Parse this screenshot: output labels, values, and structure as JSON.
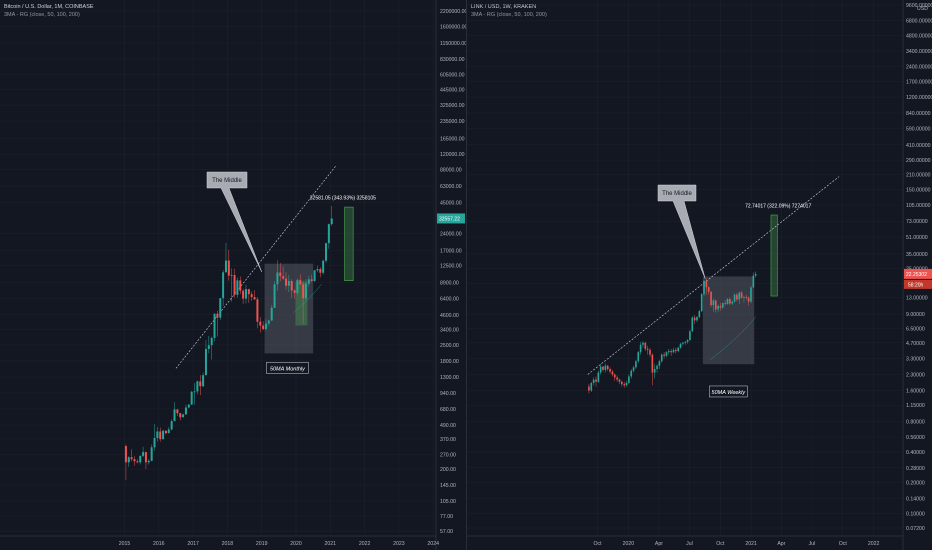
{
  "colors": {
    "background": "#131722",
    "up": "#26a69a",
    "down": "#ef5350",
    "grid": "#1e222d",
    "text": "#b2b5be",
    "range_box": "rgba(120,123,134,0.35)",
    "measure_box": "rgba(76,175,80,0.3)",
    "measure_border": "#4caf50",
    "trendline": "#d1d4dc",
    "callout": "#a9abb3"
  },
  "chart_data": [
    {
      "type": "candlestick",
      "title": "Bitcoin / U.S. Dollar, 1M, COINBASE",
      "subtitle": "3MA - RG (close, 50, 100, 200)",
      "y_scale": "log",
      "x_ticks": [
        "2015",
        "2016",
        "2017",
        "2018",
        "2019",
        "2020",
        "2021",
        "2022",
        "2023",
        "2024"
      ],
      "y_ticks": [
        "2200000.00",
        "1600000.00",
        "1150000.00",
        "830000.00",
        "605000.00",
        "445000.00",
        "325000.00",
        "235000.00",
        "165000.00",
        "120000.00",
        "88000.00",
        "63000.00",
        "45000.00",
        "32557.22",
        "24000.00",
        "17000.00",
        "12500.00",
        "8900.00",
        "6400.00",
        "4600.00",
        "3400.00",
        "2500.00",
        "1800.00",
        "1300.00",
        "940.00",
        "680.00",
        "490.00",
        "370.00",
        "270.00",
        "200.00",
        "145.00",
        "105.00",
        "77.00",
        "57.00"
      ],
      "last_price": "32557.22",
      "annotations": {
        "callout": "The Middle",
        "range_label": "50MA Monthly",
        "measure": "32581.05 (343.93%) 3258105"
      },
      "x": [
        "2015-01",
        "2015-02",
        "2015-03",
        "2015-04",
        "2015-05",
        "2015-06",
        "2015-07",
        "2015-08",
        "2015-09",
        "2015-10",
        "2015-11",
        "2015-12",
        "2016-01",
        "2016-02",
        "2016-03",
        "2016-04",
        "2016-05",
        "2016-06",
        "2016-07",
        "2016-08",
        "2016-09",
        "2016-10",
        "2016-11",
        "2016-12",
        "2017-01",
        "2017-02",
        "2017-03",
        "2017-04",
        "2017-05",
        "2017-06",
        "2017-07",
        "2017-08",
        "2017-09",
        "2017-10",
        "2017-11",
        "2017-12",
        "2018-01",
        "2018-02",
        "2018-03",
        "2018-04",
        "2018-05",
        "2018-06",
        "2018-07",
        "2018-08",
        "2018-09",
        "2018-10",
        "2018-11",
        "2018-12",
        "2019-01",
        "2019-02",
        "2019-03",
        "2019-04",
        "2019-05",
        "2019-06",
        "2019-07",
        "2019-08",
        "2019-09",
        "2019-10",
        "2019-11",
        "2019-12",
        "2020-01",
        "2020-02",
        "2020-03",
        "2020-04",
        "2020-05",
        "2020-06",
        "2020-07",
        "2020-08",
        "2020-09",
        "2020-10",
        "2020-11",
        "2020-12",
        "2021-01"
      ],
      "ohlc": [
        [
          320,
          330,
          160,
          230
        ],
        [
          230,
          260,
          210,
          255
        ],
        [
          255,
          300,
          235,
          245
        ],
        [
          245,
          260,
          215,
          235
        ],
        [
          235,
          245,
          225,
          230
        ],
        [
          230,
          265,
          220,
          262
        ],
        [
          262,
          315,
          255,
          283
        ],
        [
          283,
          285,
          200,
          230
        ],
        [
          230,
          245,
          220,
          237
        ],
        [
          237,
          330,
          235,
          312
        ],
        [
          312,
          500,
          290,
          377
        ],
        [
          377,
          470,
          350,
          430
        ],
        [
          430,
          465,
          350,
          368
        ],
        [
          368,
          445,
          365,
          437
        ],
        [
          437,
          440,
          405,
          416
        ],
        [
          416,
          470,
          415,
          448
        ],
        [
          448,
          550,
          440,
          531
        ],
        [
          531,
          780,
          530,
          673
        ],
        [
          673,
          680,
          590,
          624
        ],
        [
          624,
          625,
          540,
          575
        ],
        [
          575,
          620,
          570,
          608
        ],
        [
          608,
          740,
          605,
          700
        ],
        [
          700,
          750,
          690,
          742
        ],
        [
          742,
          980,
          740,
          964
        ],
        [
          964,
          1150,
          740,
          970
        ],
        [
          970,
          1210,
          915,
          1190
        ],
        [
          1190,
          1350,
          900,
          1080
        ],
        [
          1080,
          1420,
          1060,
          1350
        ],
        [
          1350,
          2750,
          1350,
          2300
        ],
        [
          2300,
          3000,
          2100,
          2480
        ],
        [
          2480,
          2950,
          1850,
          2875
        ],
        [
          2875,
          4750,
          2680,
          4700
        ],
        [
          4700,
          5000,
          2950,
          4340
        ],
        [
          4340,
          6450,
          4150,
          6450
        ],
        [
          6450,
          11400,
          5500,
          10900
        ],
        [
          10900,
          19800,
          10900,
          13850
        ],
        [
          13850,
          17200,
          9200,
          10200
        ],
        [
          10200,
          11800,
          6000,
          10300
        ],
        [
          10300,
          11700,
          6500,
          6900
        ],
        [
          6900,
          9800,
          6500,
          9250
        ],
        [
          9250,
          10000,
          7000,
          7500
        ],
        [
          7500,
          7800,
          5750,
          6400
        ],
        [
          6400,
          8500,
          5800,
          7750
        ],
        [
          7750,
          7800,
          5850,
          7000
        ],
        [
          7000,
          7400,
          6100,
          6600
        ],
        [
          6600,
          7600,
          6200,
          6300
        ],
        [
          6300,
          6600,
          3500,
          4000
        ],
        [
          4000,
          4400,
          3200,
          3700
        ],
        [
          3700,
          4050,
          3350,
          3450
        ],
        [
          3450,
          4200,
          3350,
          3850
        ],
        [
          3850,
          4150,
          3650,
          4100
        ],
        [
          4100,
          5600,
          4050,
          5300
        ],
        [
          5300,
          9100,
          5300,
          8550
        ],
        [
          8550,
          13900,
          7450,
          10850
        ],
        [
          10850,
          13150,
          9100,
          10100
        ],
        [
          10100,
          12300,
          9350,
          9600
        ],
        [
          9600,
          10950,
          7700,
          8300
        ],
        [
          8300,
          10400,
          7300,
          9150
        ],
        [
          9150,
          9500,
          6500,
          7550
        ],
        [
          7550,
          7750,
          6400,
          7200
        ],
        [
          7200,
          9600,
          6900,
          9350
        ],
        [
          9350,
          10500,
          8450,
          8550
        ],
        [
          8550,
          9200,
          3850,
          6450
        ],
        [
          6450,
          9500,
          6150,
          8650
        ],
        [
          8650,
          10100,
          8150,
          9450
        ],
        [
          9450,
          10400,
          8900,
          9150
        ],
        [
          9150,
          11450,
          8950,
          11350
        ],
        [
          11350,
          12500,
          10950,
          11650
        ],
        [
          11650,
          12100,
          9850,
          10800
        ],
        [
          10800,
          14100,
          10400,
          13800
        ],
        [
          13800,
          19900,
          13200,
          19700
        ],
        [
          19700,
          29300,
          17600,
          29000
        ],
        [
          29000,
          41950,
          28100,
          32557
        ]
      ]
    },
    {
      "type": "candlestick",
      "title": "LINK / USD, 1W, KRAKEN",
      "subtitle": "3MA - RG (close, 50, 100, 200)",
      "y_scale": "log",
      "y_unit": "USD",
      "x_ticks": [
        "Oct",
        "2020",
        "Apr",
        "Jul",
        "Oct",
        "2021",
        "Apr",
        "Jul",
        "Oct",
        "2022"
      ],
      "y_ticks": [
        "9600.00000",
        "6800.00000",
        "4800.00000",
        "3400.00000",
        "2400.00000",
        "1700.00000",
        "1200.00000",
        "840.00000",
        "590.00000",
        "410.00000",
        "290.00000",
        "210.00000",
        "150.00000",
        "105.00000",
        "73.00000",
        "51.00000",
        "35.00000",
        "25.00000",
        "18.00000",
        "13.00000",
        "9.00000",
        "6.50000",
        "4.70000",
        "3.30000",
        "2.30000",
        "1.60000",
        "1.15000",
        "0.80000",
        "0.56000",
        "0.40000",
        "0.28000",
        "0.20000",
        "0.14000",
        "0.10000",
        "0.07200"
      ],
      "last_price": "22.25302",
      "last_price_sub": "58:20h",
      "annotations": {
        "callout": "The Middle",
        "range_label": "50MA Weekly",
        "measure": "72.74017 (322.09%) 7274017"
      },
      "x": [
        "2019-09-02",
        "2019-09-09",
        "2019-09-16",
        "2019-09-23",
        "2019-09-30",
        "2019-10-07",
        "2019-10-14",
        "2019-10-21",
        "2019-10-28",
        "2019-11-04",
        "2019-11-11",
        "2019-11-18",
        "2019-11-25",
        "2019-12-02",
        "2019-12-09",
        "2019-12-16",
        "2019-12-23",
        "2019-12-30",
        "2020-01-06",
        "2020-01-13",
        "2020-01-20",
        "2020-01-27",
        "2020-02-03",
        "2020-02-10",
        "2020-02-17",
        "2020-02-24",
        "2020-03-02",
        "2020-03-09",
        "2020-03-16",
        "2020-03-23",
        "2020-03-30",
        "2020-04-06",
        "2020-04-13",
        "2020-04-20",
        "2020-04-27",
        "2020-05-04",
        "2020-05-11",
        "2020-05-18",
        "2020-05-25",
        "2020-06-01",
        "2020-06-08",
        "2020-06-15",
        "2020-06-22",
        "2020-06-29",
        "2020-07-06",
        "2020-07-13",
        "2020-07-20",
        "2020-07-27",
        "2020-08-03",
        "2020-08-10",
        "2020-08-17",
        "2020-08-24",
        "2020-08-31",
        "2020-09-07",
        "2020-09-14",
        "2020-09-21",
        "2020-09-28",
        "2020-10-05",
        "2020-10-12",
        "2020-10-19",
        "2020-10-26",
        "2020-11-02",
        "2020-11-09",
        "2020-11-16",
        "2020-11-23",
        "2020-11-30",
        "2020-12-07",
        "2020-12-14",
        "2020-12-21",
        "2020-12-28",
        "2021-01-04",
        "2021-01-11"
      ],
      "ohlc": [
        [
          1.75,
          1.85,
          1.5,
          1.6
        ],
        [
          1.6,
          1.95,
          1.55,
          1.9
        ],
        [
          1.9,
          2.15,
          1.8,
          2.05
        ],
        [
          2.05,
          2.2,
          1.75,
          1.95
        ],
        [
          1.95,
          2.5,
          1.9,
          2.4
        ],
        [
          2.4,
          2.9,
          2.3,
          2.75
        ],
        [
          2.75,
          2.8,
          2.45,
          2.55
        ],
        [
          2.55,
          2.95,
          2.4,
          2.8
        ],
        [
          2.8,
          2.85,
          2.5,
          2.6
        ],
        [
          2.6,
          2.7,
          2.35,
          2.45
        ],
        [
          2.45,
          2.55,
          2.2,
          2.3
        ],
        [
          2.3,
          2.35,
          2.0,
          2.15
        ],
        [
          2.15,
          2.25,
          1.95,
          2.05
        ],
        [
          2.05,
          2.1,
          1.85,
          1.95
        ],
        [
          1.95,
          2.0,
          1.75,
          1.85
        ],
        [
          1.85,
          1.95,
          1.7,
          1.8
        ],
        [
          1.8,
          2.0,
          1.75,
          1.9
        ],
        [
          1.9,
          2.3,
          1.85,
          2.2
        ],
        [
          2.2,
          2.6,
          2.1,
          2.5
        ],
        [
          2.5,
          2.8,
          2.4,
          2.7
        ],
        [
          2.7,
          3.2,
          2.6,
          3.1
        ],
        [
          3.1,
          3.9,
          3.0,
          3.8
        ],
        [
          3.8,
          4.8,
          3.6,
          4.5
        ],
        [
          4.5,
          4.9,
          4.2,
          4.7
        ],
        [
          4.7,
          4.8,
          3.9,
          4.1
        ],
        [
          4.1,
          4.4,
          3.6,
          4.0
        ],
        [
          4.0,
          4.2,
          3.4,
          3.6
        ],
        [
          3.6,
          3.7,
          1.8,
          2.4
        ],
        [
          2.4,
          2.9,
          2.1,
          2.6
        ],
        [
          2.6,
          2.9,
          2.4,
          2.8
        ],
        [
          2.8,
          3.2,
          2.6,
          3.1
        ],
        [
          3.1,
          3.7,
          3.0,
          3.6
        ],
        [
          3.6,
          3.8,
          3.3,
          3.5
        ],
        [
          3.5,
          3.9,
          3.4,
          3.8
        ],
        [
          3.8,
          4.1,
          3.6,
          3.9
        ],
        [
          3.9,
          4.1,
          3.5,
          3.8
        ],
        [
          3.8,
          4.2,
          3.7,
          4.0
        ],
        [
          4.0,
          4.2,
          3.7,
          3.9
        ],
        [
          3.9,
          4.3,
          3.8,
          4.2
        ],
        [
          4.2,
          4.7,
          4.1,
          4.6
        ],
        [
          4.6,
          4.8,
          4.4,
          4.7
        ],
        [
          4.7,
          4.9,
          4.5,
          4.8
        ],
        [
          4.8,
          5.1,
          4.6,
          5.0
        ],
        [
          5.0,
          6.3,
          4.9,
          6.1
        ],
        [
          6.1,
          8.6,
          6.0,
          8.3
        ],
        [
          8.3,
          8.8,
          7.2,
          7.8
        ],
        [
          7.8,
          8.6,
          7.5,
          8.4
        ],
        [
          8.4,
          9.9,
          8.2,
          9.6
        ],
        [
          9.6,
          14.5,
          9.4,
          14.1
        ],
        [
          14.1,
          19.5,
          13.5,
          18.9
        ],
        [
          18.9,
          20.0,
          14.0,
          16.5
        ],
        [
          16.5,
          16.8,
          14.0,
          14.9
        ],
        [
          14.9,
          15.0,
          10.5,
          11.0
        ],
        [
          11.0,
          12.8,
          9.5,
          12.2
        ],
        [
          12.2,
          12.5,
          9.3,
          10.0
        ],
        [
          10.0,
          11.2,
          9.4,
          10.8
        ],
        [
          10.8,
          11.6,
          9.7,
          10.4
        ],
        [
          10.4,
          11.7,
          10.1,
          11.5
        ],
        [
          11.5,
          12.3,
          10.9,
          11.3
        ],
        [
          11.3,
          12.9,
          11.1,
          12.6
        ],
        [
          12.6,
          13.1,
          11.0,
          11.4
        ],
        [
          11.4,
          12.2,
          11.0,
          11.9
        ],
        [
          11.9,
          14.3,
          11.6,
          13.9
        ],
        [
          13.9,
          14.5,
          12.0,
          12.5
        ],
        [
          12.5,
          14.9,
          11.2,
          14.6
        ],
        [
          14.6,
          15.2,
          12.7,
          13.0
        ],
        [
          13.0,
          13.6,
          11.6,
          13.2
        ],
        [
          13.2,
          13.9,
          12.4,
          13.0
        ],
        [
          13.0,
          13.4,
          10.9,
          11.9
        ],
        [
          11.9,
          17.0,
          11.5,
          16.4
        ],
        [
          16.4,
          23.0,
          16.2,
          21.4
        ],
        [
          21.4,
          23.5,
          20.5,
          22.25
        ]
      ]
    }
  ]
}
